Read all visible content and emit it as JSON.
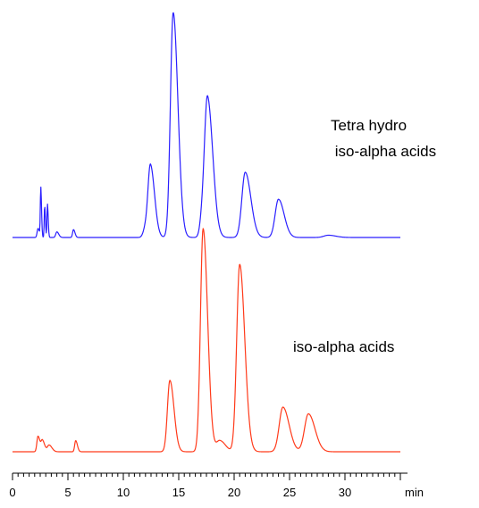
{
  "chart_data": {
    "type": "line",
    "xlabel": "min",
    "xlim": [
      0,
      35
    ],
    "ticks": [
      {
        "value": 0,
        "label": "0"
      },
      {
        "value": 5,
        "label": "5"
      },
      {
        "value": 10,
        "label": "10"
      },
      {
        "value": 15,
        "label": "15"
      },
      {
        "value": 20,
        "label": "20"
      },
      {
        "value": 25,
        "label": "25"
      },
      {
        "value": 30,
        "label": "30"
      }
    ],
    "minor_tick_step": 0.5,
    "grid": false,
    "legend": "none",
    "series": [
      {
        "name": "Tetra hydro iso-alpha acids",
        "label_lines": [
          "Tetra hydro",
          " iso-alpha acids"
        ],
        "color": "#2a1fff",
        "x_end": 35,
        "peaks": [
          {
            "t": 2.55,
            "h": 0.22,
            "w": 0.04
          },
          {
            "t": 2.9,
            "h": 0.14,
            "w": 0.04
          },
          {
            "t": 3.15,
            "h": 0.15,
            "w": 0.04
          },
          {
            "t": 2.3,
            "h": 0.04,
            "w": 0.08
          },
          {
            "t": 4.0,
            "h": 0.025,
            "w": 0.1
          },
          {
            "t": 5.5,
            "h": 0.035,
            "w": 0.08
          },
          {
            "t": 12.0,
            "h": 0.04,
            "w": 0.2
          },
          {
            "t": 12.45,
            "h": 0.31,
            "w": 0.22
          },
          {
            "t": 14.5,
            "h": 1.0,
            "w": 0.25
          },
          {
            "t": 17.1,
            "h": 0.06,
            "w": 0.2
          },
          {
            "t": 17.6,
            "h": 0.61,
            "w": 0.28
          },
          {
            "t": 21.0,
            "h": 0.29,
            "w": 0.3
          },
          {
            "t": 24.0,
            "h": 0.17,
            "w": 0.3
          },
          {
            "t": 28.5,
            "h": 0.01,
            "w": 0.4
          }
        ]
      },
      {
        "name": "iso-alpha acids",
        "label_lines": [
          "iso-alpha acids"
        ],
        "color": "#ff3a1a",
        "x_end": 35,
        "peaks": [
          {
            "t": 2.3,
            "h": 0.07,
            "w": 0.1
          },
          {
            "t": 2.7,
            "h": 0.05,
            "w": 0.12
          },
          {
            "t": 3.3,
            "h": 0.03,
            "w": 0.15
          },
          {
            "t": 5.7,
            "h": 0.05,
            "w": 0.09
          },
          {
            "t": 14.2,
            "h": 0.32,
            "w": 0.22
          },
          {
            "t": 17.2,
            "h": 1.0,
            "w": 0.24
          },
          {
            "t": 18.7,
            "h": 0.05,
            "w": 0.3
          },
          {
            "t": 20.5,
            "h": 0.84,
            "w": 0.27
          },
          {
            "t": 24.4,
            "h": 0.2,
            "w": 0.33
          },
          {
            "t": 26.7,
            "h": 0.17,
            "w": 0.35
          }
        ]
      }
    ]
  }
}
